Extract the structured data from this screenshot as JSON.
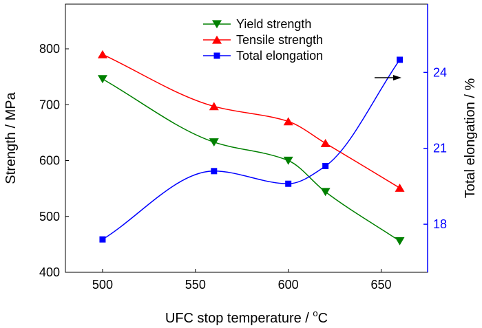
{
  "chart_data": {
    "type": "line",
    "xlabel": "UFC stop temperature / ",
    "xlabel_sup": "o",
    "xlabel_unit": "C",
    "ylabel": "Strength / MPa",
    "y2label": "Total elongation / %",
    "xlim": [
      480,
      675
    ],
    "ylim": [
      400,
      880
    ],
    "y2lim": [
      16.1,
      26.7
    ],
    "x_ticks": [
      500,
      550,
      600,
      650
    ],
    "y_ticks": [
      400,
      500,
      600,
      700,
      800
    ],
    "y2_ticks": [
      18,
      21,
      24
    ],
    "grid": false,
    "legend_position": "top-center",
    "annotation": "arrow pointing to right axis",
    "series": [
      {
        "name": "Yield strength",
        "axis": "left",
        "marker": "triangle-down",
        "color": "#008000",
        "x": [
          500,
          560,
          600,
          620,
          660
        ],
        "values": [
          746,
          633,
          600,
          544,
          456
        ]
      },
      {
        "name": "Tensile strength",
        "axis": "left",
        "marker": "triangle-up",
        "color": "#ff0000",
        "x": [
          500,
          560,
          600,
          620,
          660
        ],
        "values": [
          790,
          697,
          670,
          631,
          551
        ]
      },
      {
        "name": "Total elongation",
        "axis": "right",
        "marker": "square",
        "color": "#0000ff",
        "x": [
          500,
          560,
          600,
          620,
          660
        ],
        "values": [
          17.4,
          20.1,
          19.6,
          20.3,
          24.5
        ]
      }
    ]
  }
}
